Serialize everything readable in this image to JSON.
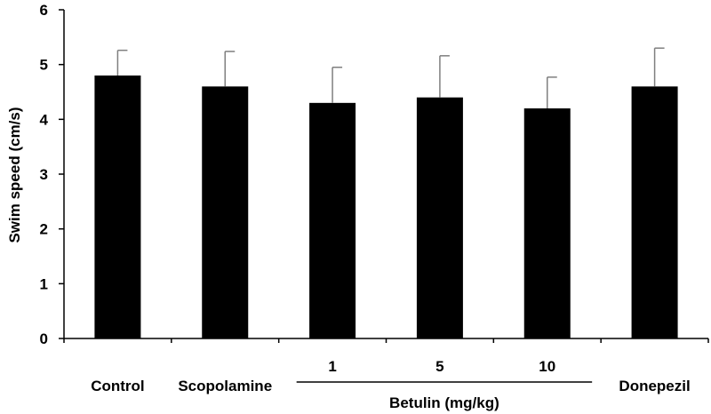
{
  "chart_data": {
    "type": "bar",
    "title": "",
    "xlabel": "",
    "ylabel": "Swim speed (cm/s)",
    "ylim": [
      0,
      6
    ],
    "yticks": [
      0,
      1,
      2,
      3,
      4,
      5,
      6
    ],
    "grid": false,
    "legend": "none",
    "bar_color": "#000000",
    "categories": [
      "Control",
      "Scopolamine",
      "1",
      "5",
      "10",
      "Donepezil"
    ],
    "values": [
      4.8,
      4.6,
      4.3,
      4.4,
      4.2,
      4.6
    ],
    "errors": [
      0.46,
      0.64,
      0.65,
      0.76,
      0.57,
      0.7
    ],
    "group_label": {
      "text": "Betulin (mg/kg)",
      "categories": [
        "1",
        "5",
        "10"
      ]
    }
  }
}
